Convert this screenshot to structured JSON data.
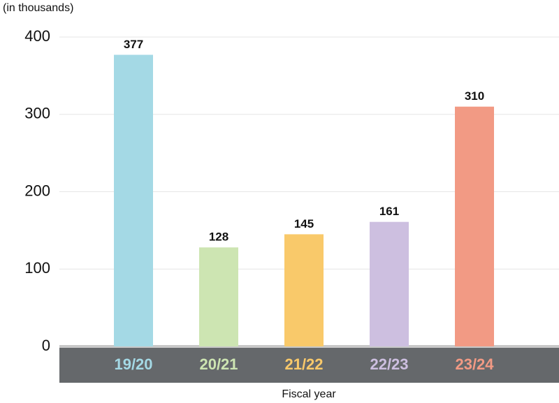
{
  "chart_data": {
    "type": "bar",
    "y_axis_label": "(in thousands)",
    "x_axis_label": "Fiscal year",
    "categories": [
      "19/20",
      "20/21",
      "21/22",
      "22/23",
      "23/24"
    ],
    "values": [
      377,
      128,
      145,
      161,
      310
    ],
    "colors": [
      "#a4d9e5",
      "#cde5b2",
      "#f9c96a",
      "#cdbfe0",
      "#f29a84"
    ],
    "ylim": [
      0,
      400
    ],
    "yticks": [
      0,
      100,
      200,
      300,
      400
    ],
    "grid": true
  }
}
